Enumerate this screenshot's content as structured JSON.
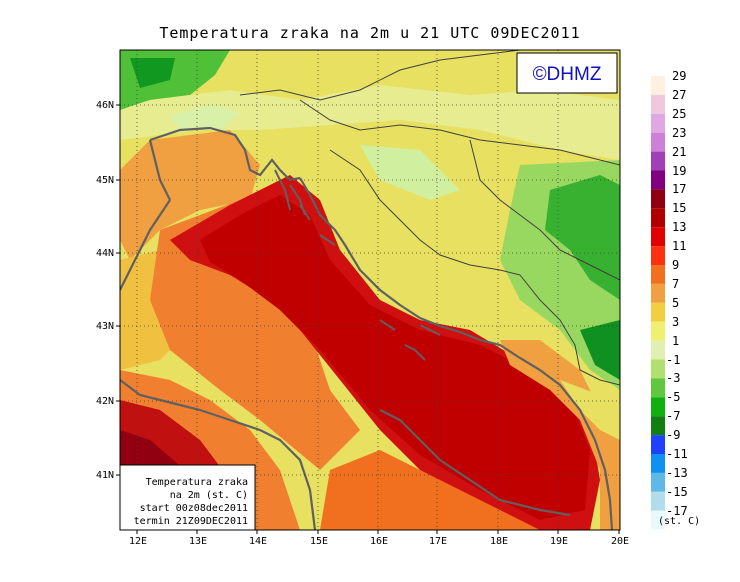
{
  "title": "Temperatura zraka na 2m u 21 UTC 09DEC2011",
  "watermark": "©DHMZ",
  "info_box": {
    "line1": "Temperatura zraka",
    "line2": "na 2m (st. C)",
    "line3": "start 00z08dec2011",
    "line4": "termin 21Z09DEC2011"
  },
  "lat_ticks": [
    "46N",
    "45N",
    "44N",
    "43N",
    "42N",
    "41N"
  ],
  "lon_ticks": [
    "12E",
    "13E",
    "14E",
    "15E",
    "16E",
    "17E",
    "18E",
    "19E",
    "20E"
  ],
  "legend": {
    "unit": "(st. C)",
    "labels": [
      "29",
      "27",
      "25",
      "23",
      "21",
      "19",
      "17",
      "15",
      "13",
      "11",
      "9",
      "7",
      "5",
      "3",
      "1",
      "-1",
      "-3",
      "-5",
      "-7",
      "-9",
      "-11",
      "-13",
      "-15",
      "-17"
    ],
    "colors": [
      "#fff0e0",
      "#f0c8dc",
      "#e0a8e0",
      "#cc80d8",
      "#a040b8",
      "#800080",
      "#900010",
      "#b00000",
      "#e00000",
      "#ff3010",
      "#f07020",
      "#f0a040",
      "#f0d040",
      "#f0f070",
      "#e0f0b0",
      "#b0e070",
      "#60c840",
      "#10b010",
      "#108010",
      "#2040ff",
      "#1090f0",
      "#60b8e8",
      "#b0dcec",
      "#e8f8fc"
    ]
  }
}
